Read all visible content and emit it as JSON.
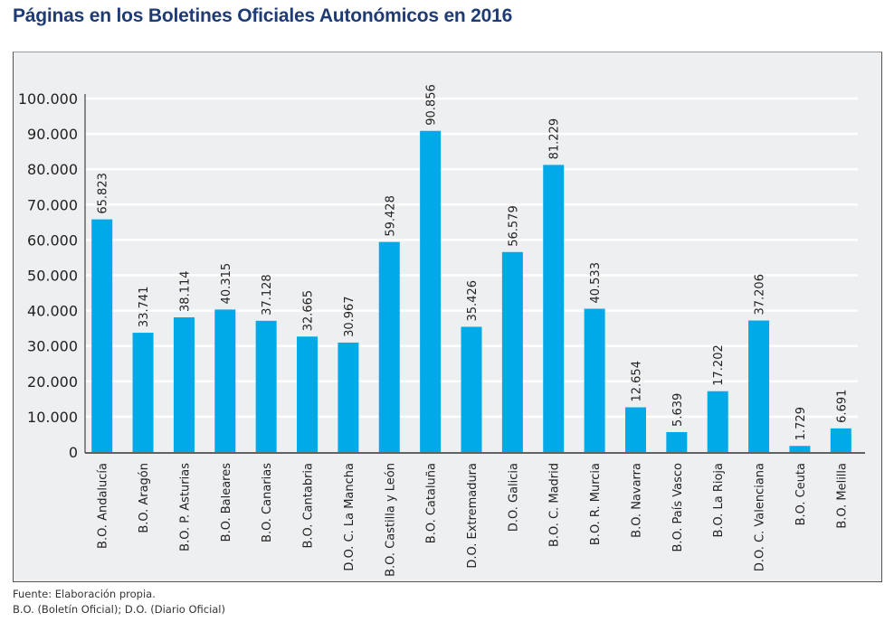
{
  "chart_data": {
    "type": "bar",
    "title": "Páginas en los Boletines Oficiales Autonómicos en 2016",
    "xlabel": "",
    "ylabel": "",
    "ylim": [
      0,
      100000
    ],
    "yticks": [
      0,
      10000,
      20000,
      30000,
      40000,
      50000,
      60000,
      70000,
      80000,
      90000,
      100000
    ],
    "ytick_labels": [
      "0",
      "10.000",
      "20.000",
      "30.000",
      "40.000",
      "50.000",
      "60.000",
      "70.000",
      "80.000",
      "90.000",
      "100.000"
    ],
    "grid": true,
    "legend": "none",
    "bar_color": "#00a9e8",
    "categories": [
      "B.O. Andalucía",
      "B.O. Aragón",
      "B.O. P. Asturias",
      "B.O. Baleares",
      "B.O. Canarias",
      "B.O. Cantabria",
      "D.O. C. La Mancha",
      "B.O. Castilla y León",
      "B.O. Cataluña",
      "D.O. Extremadura",
      "D.O. Galicia",
      "B.O. C. Madrid",
      "B.O. R. Murcia",
      "B.O. Navarra",
      "B.O. País Vasco",
      "B.O. La Rioja",
      "D.O. C. Valenciana",
      "B.O. Ceuta",
      "B.O. Melilla"
    ],
    "values": [
      65823,
      33741,
      38114,
      40315,
      37128,
      32665,
      30967,
      59428,
      90856,
      35426,
      56579,
      81229,
      40533,
      12654,
      5639,
      17202,
      37206,
      1729,
      6691
    ],
    "data_labels": [
      "65.823",
      "33.741",
      "38.114",
      "40.315",
      "37.128",
      "32.665",
      "30.967",
      "59.428",
      "90.856",
      "35.426",
      "56.579",
      "81.229",
      "40.533",
      "12.654",
      "5.639",
      "17.202",
      "37.206",
      "1.729",
      "6.691"
    ]
  },
  "footer": {
    "source": "Fuente: Elaboración propia.",
    "note": "B.O. (Boletín Oficial); D.O. (Diario Oficial)"
  }
}
